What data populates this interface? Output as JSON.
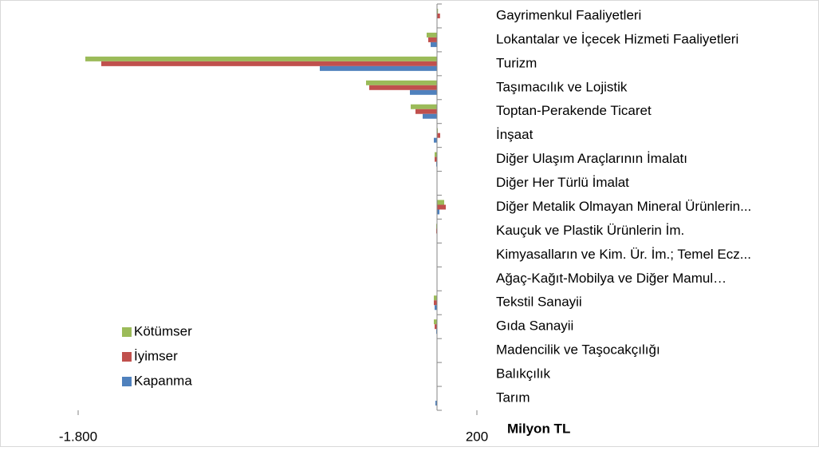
{
  "chart_data": {
    "type": "hbar",
    "xlabel": "Milyon TL",
    "categories": [
      "Gayrimenkul Faaliyetleri",
      "Lokantalar  ve İçecek Hizmeti Faaliyetleri",
      "Turizm",
      "Taşımacılık ve Lojistik",
      "Toptan-Perakende Ticaret",
      "İnşaat",
      "Diğer Ulaşım Araçlarının İmalatı",
      "Diğer Her Türlü İmalat",
      "Diğer Metalik Olmayan Mineral Ürünlerin...",
      "Kauçuk ve Plastik Ürünlerin İm.",
      "Kimyasalların ve Kim. Ür. İm.; Temel Ecz...",
      "Ağaç-Kağıt-Mobilya ve Diğer Mamul…",
      "Tekstil Sanayii",
      "Gıda Sanayii",
      "Madencilik ve Taşocakçılığı",
      "Balıkçılık",
      "Tarım"
    ],
    "series": [
      {
        "name": "Kötümser",
        "color": "#9bbb59",
        "values": [
          5,
          -52,
          -1764,
          -356,
          -132,
          4,
          -12,
          2,
          36,
          -4,
          0,
          -2,
          -16,
          -16,
          0,
          0,
          0
        ]
      },
      {
        "name": "İyimser",
        "color": "#c0504d",
        "values": [
          15,
          -44,
          -1684,
          -340,
          -108,
          16,
          -12,
          2,
          44,
          -4,
          0,
          -2,
          -16,
          -12,
          0,
          0,
          0
        ]
      },
      {
        "name": "Kapanma",
        "color": "#4f81bd",
        "values": [
          2,
          -32,
          -588,
          -136,
          -72,
          -16,
          -4,
          0,
          12,
          0,
          0,
          0,
          -12,
          -4,
          0,
          0,
          -8
        ]
      }
    ],
    "xlim": [
      -1800,
      200
    ],
    "xticks": [
      {
        "value": -1800,
        "label": "-1.800"
      },
      200
    ],
    "legend": "lower left"
  }
}
